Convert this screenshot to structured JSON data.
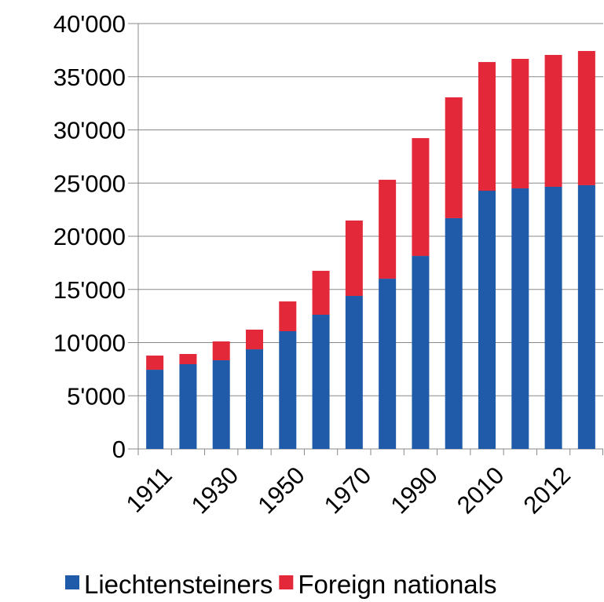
{
  "chart_data": {
    "type": "stacked_bar",
    "categories": [
      "1911",
      null,
      "1930",
      null,
      "1950",
      null,
      "1970",
      null,
      "1990",
      null,
      "2010",
      null,
      "2012",
      null
    ],
    "series": [
      {
        "name": "Liechtensteiners",
        "color": "#1f5ba8",
        "values": [
          7450,
          7970,
          8340,
          9370,
          11070,
          12620,
          14390,
          16010,
          18150,
          21700,
          24280,
          24500,
          24650,
          24800
        ]
      },
      {
        "name": "Foreign nationals",
        "color": "#e3283a",
        "values": [
          1330,
          960,
          1770,
          1850,
          2800,
          4130,
          7090,
          9300,
          11080,
          11360,
          12100,
          12180,
          12400,
          12620
        ]
      }
    ],
    "ylim": [
      0,
      40000
    ],
    "yticks": [
      0,
      {
        "value": 5000,
        "label": "5'000"
      },
      {
        "value": 10000,
        "label": "10'000"
      },
      {
        "value": 15000,
        "label": "15'000"
      },
      {
        "value": 20000,
        "label": "20'000"
      },
      {
        "value": 25000,
        "label": "25'000"
      },
      {
        "value": 30000,
        "label": "30'000"
      },
      {
        "value": 35000,
        "label": "35'000"
      },
      {
        "value": 40000,
        "label": "40'000"
      }
    ],
    "grid": true,
    "legend": "bottom"
  }
}
